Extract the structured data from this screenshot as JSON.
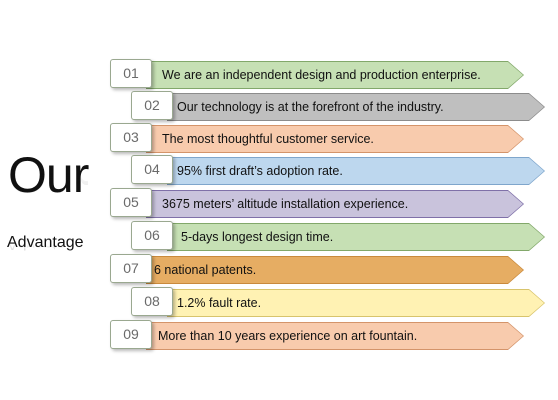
{
  "title": {
    "main": "Our",
    "sub": "Advantage"
  },
  "items": [
    {
      "num": "01",
      "text": "We are an independent design and production enterprise.",
      "fill": "#c6e0b4",
      "border": "#82a86a"
    },
    {
      "num": "02",
      "text": "Our technology is at the forefront of the industry.",
      "fill": "#bfbfbf",
      "border": "#8c8c8c"
    },
    {
      "num": "03",
      "text": "The most thoughtful customer service.",
      "fill": "#f8cbad",
      "border": "#d4946a"
    },
    {
      "num": "04",
      "text": "95% first draft’s adoption rate.",
      "fill": "#bdd7ee",
      "border": "#7fa6cc"
    },
    {
      "num": "05",
      "text": "3675 meters’ altitude installation experience.",
      "fill": "#c9c3dc",
      "border": "#7f70a8"
    },
    {
      "num": "06",
      "text": "5-days longest design time.",
      "fill": "#c6e0b4",
      "border": "#82a86a"
    },
    {
      "num": "07",
      "text": "6 national patents.",
      "fill": "#e6ad63",
      "border": "#c98a3c"
    },
    {
      "num": "08",
      "text": "1.2% fault rate.",
      "fill": "#fff2b3",
      "border": "#d8c46c"
    },
    {
      "num": "09",
      "text": "More than 10 years experience on art fountain.",
      "fill": "#f8cbad",
      "border": "#d4946a"
    }
  ]
}
